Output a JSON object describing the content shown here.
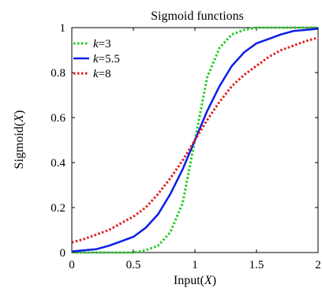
{
  "chart_data": {
    "type": "line",
    "title": "Sigmoid functions",
    "xlabel": {
      "prefix": "Input(",
      "var": "X",
      "suffix": ")"
    },
    "ylabel": {
      "prefix": "Sigmoid(",
      "var": "X",
      "suffix": ")"
    },
    "xlim": [
      0,
      2
    ],
    "ylim": [
      0,
      1
    ],
    "x_ticks": [
      0,
      0.5,
      1,
      1.5,
      2
    ],
    "x_tick_labels": [
      "0",
      "0.5",
      "1",
      "1.5",
      "2"
    ],
    "y_ticks": [
      0,
      0.2,
      0.4,
      0.6,
      0.8,
      1
    ],
    "y_tick_labels": [
      "0",
      "0.2",
      "0.4",
      "0.6",
      "0.8",
      "1"
    ],
    "grid": false,
    "legend_position": "top-left",
    "x": [
      0,
      0.1,
      0.2,
      0.3,
      0.4,
      0.5,
      0.6,
      0.7,
      0.8,
      0.9,
      1.0,
      1.1,
      1.2,
      1.3,
      1.4,
      1.5,
      1.6,
      1.7,
      1.8,
      1.9,
      2.0
    ],
    "series": [
      {
        "name_var": "k",
        "name_value": "=3",
        "color": "#22cc22",
        "style": "dotted",
        "values": [
          0.0,
          0.0,
          0.0,
          0.0,
          0.0,
          0.0,
          0.01,
          0.03,
          0.09,
          0.22,
          0.5,
          0.78,
          0.91,
          0.97,
          0.99,
          1.0,
          1.0,
          1.0,
          1.0,
          1.0,
          1.0
        ]
      },
      {
        "name_var": "k",
        "name_value": "=5.5",
        "color": "#0a1ee8",
        "style": "solid",
        "values": [
          0.005,
          0.01,
          0.015,
          0.03,
          0.05,
          0.07,
          0.11,
          0.17,
          0.26,
          0.37,
          0.5,
          0.63,
          0.74,
          0.83,
          0.89,
          0.93,
          0.95,
          0.97,
          0.985,
          0.99,
          0.995
        ]
      },
      {
        "name_var": "k",
        "name_value": "=8",
        "color": "#e02020",
        "style": "dotted",
        "values": [
          0.045,
          0.06,
          0.08,
          0.1,
          0.13,
          0.16,
          0.2,
          0.26,
          0.33,
          0.41,
          0.5,
          0.59,
          0.67,
          0.74,
          0.79,
          0.83,
          0.87,
          0.9,
          0.92,
          0.94,
          0.955
        ]
      }
    ]
  }
}
